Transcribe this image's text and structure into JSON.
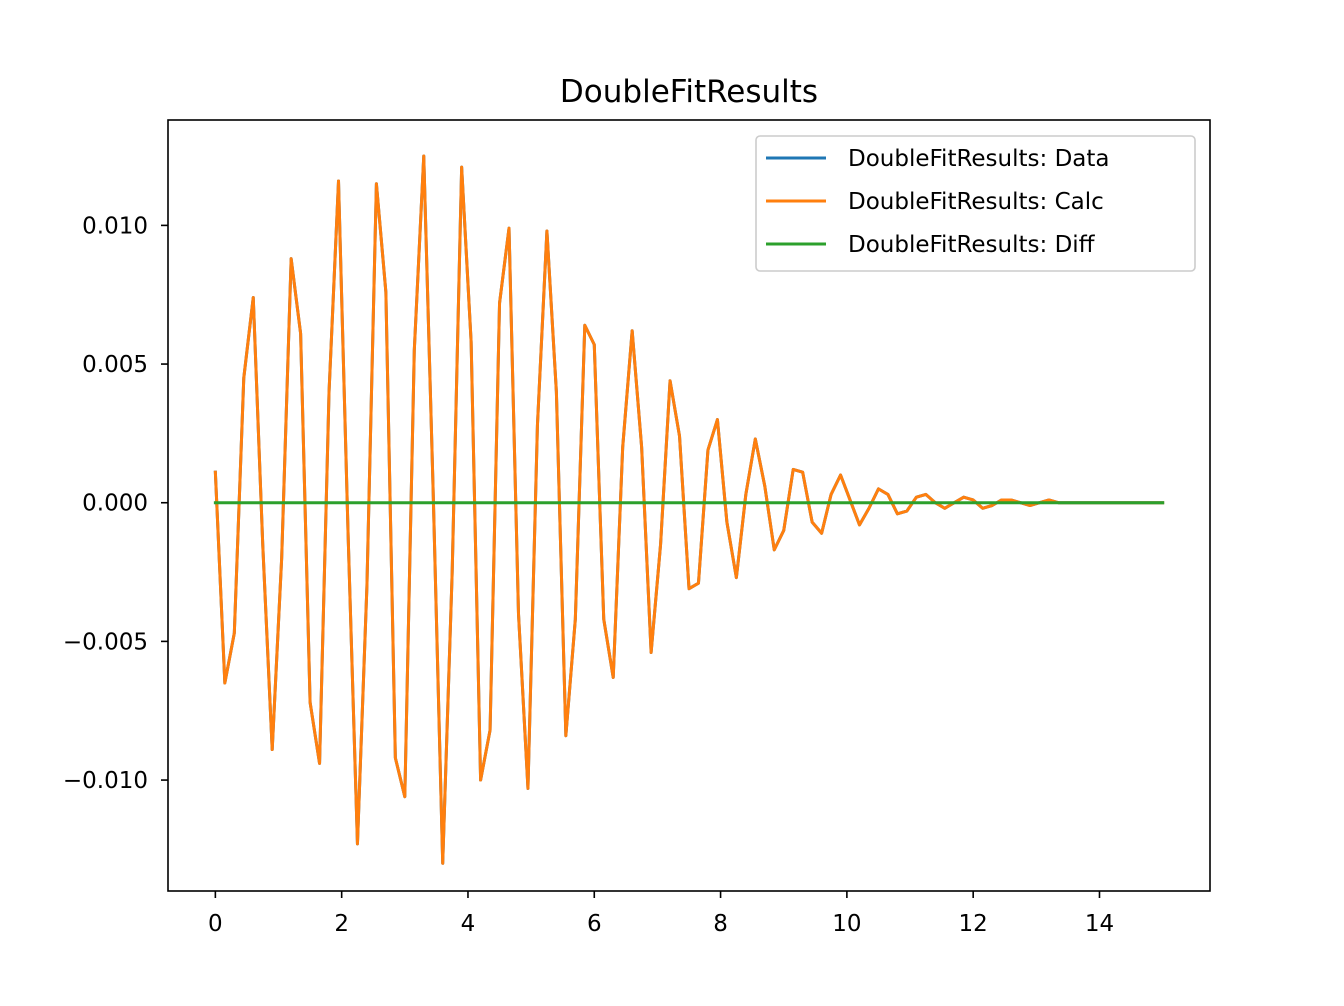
{
  "chart_data": {
    "type": "line",
    "title": "DoubleFitResults",
    "xlabel": "",
    "ylabel": "",
    "xlim": [
      -0.75,
      15.75
    ],
    "ylim": [
      -0.014,
      0.0138
    ],
    "grid": false,
    "legend_position": "top-right",
    "xticks": [
      {
        "value": 0,
        "label": "0"
      },
      {
        "value": 2,
        "label": "2"
      },
      {
        "value": 4,
        "label": "4"
      },
      {
        "value": 6,
        "label": "6"
      },
      {
        "value": 8,
        "label": "8"
      },
      {
        "value": 10,
        "label": "10"
      },
      {
        "value": 12,
        "label": "12"
      },
      {
        "value": 14,
        "label": "14"
      }
    ],
    "yticks": [
      {
        "value": -0.01,
        "label": "−0.010"
      },
      {
        "value": -0.005,
        "label": "−0.005"
      },
      {
        "value": 0,
        "label": "0.000"
      },
      {
        "value": 0.005,
        "label": "0.005"
      },
      {
        "value": 0.01,
        "label": "0.010"
      }
    ],
    "series": [
      {
        "name": "DoubleFitResults: Data",
        "color": "#1f77b4",
        "x": [
          0.0,
          0.15,
          0.3,
          0.45,
          0.6,
          0.75,
          0.9,
          1.05,
          1.2,
          1.35,
          1.5,
          1.65,
          1.8,
          1.95,
          2.1,
          2.25,
          2.4,
          2.55,
          2.7,
          2.85,
          3.0,
          3.15,
          3.3,
          3.45,
          3.6,
          3.75,
          3.9,
          4.05,
          4.2,
          4.35,
          4.5,
          4.65,
          4.8,
          4.95,
          5.1,
          5.25,
          5.4,
          5.55,
          5.7,
          5.85,
          6.0,
          6.15,
          6.3,
          6.45,
          6.6,
          6.75,
          6.9,
          7.05,
          7.2,
          7.35,
          7.5,
          7.65,
          7.8,
          7.95,
          8.1,
          8.25,
          8.4,
          8.55,
          8.7,
          8.85,
          9.0,
          9.15,
          9.3,
          9.45,
          9.6,
          9.75,
          9.9,
          10.05,
          10.2,
          10.35,
          10.5,
          10.65,
          10.8,
          10.95,
          11.1,
          11.25,
          11.4,
          11.55,
          11.7,
          11.85,
          12.0,
          12.15,
          12.3,
          12.45,
          12.6,
          12.75,
          12.9,
          13.05,
          13.2,
          13.35,
          13.5,
          13.65,
          13.8,
          13.95,
          14.1,
          14.25,
          14.4,
          14.55,
          14.7,
          14.85,
          15.0
        ],
        "values": [
          0.0011,
          -0.0065,
          -0.0047,
          0.0045,
          0.0074,
          -0.0015,
          -0.0089,
          -0.002,
          0.0088,
          0.0061,
          -0.0072,
          -0.0094,
          0.004,
          0.0116,
          -0.001,
          -0.0123,
          -0.003,
          0.0115,
          0.0076,
          -0.0092,
          -0.0106,
          0.0055,
          0.0125,
          0.0003,
          -0.013,
          -0.0025,
          0.0121,
          0.0058,
          -0.01,
          -0.0082,
          0.0072,
          0.0099,
          -0.004,
          -0.0103,
          0.0028,
          0.0098,
          0.004,
          -0.0084,
          -0.0042,
          0.0064,
          0.0057,
          -0.0042,
          -0.0063,
          0.002,
          0.0062,
          0.002,
          -0.0054,
          -0.0015,
          0.0044,
          0.0024,
          -0.0031,
          -0.0029,
          0.0019,
          0.003,
          -0.0007,
          -0.0027,
          0.0003,
          0.0023,
          0.0006,
          -0.0017,
          -0.001,
          0.0012,
          0.0011,
          -0.0007,
          -0.0011,
          0.0003,
          0.001,
          0.0001,
          -0.0008,
          -0.0002,
          0.0005,
          0.0003,
          -0.0004,
          -0.0003,
          0.0002,
          0.0003,
          0.0,
          -0.0002,
          0.0,
          0.0002,
          0.0001,
          -0.0002,
          -0.0001,
          0.0001,
          0.0001,
          0.0,
          -0.0001,
          0.0,
          0.0001,
          0.0,
          0.0,
          0.0,
          0.0,
          0.0,
          0.0,
          0.0,
          0.0,
          0.0,
          0.0,
          0.0,
          0.0
        ]
      },
      {
        "name": "DoubleFitResults: Calc",
        "color": "#ff7f0e",
        "x": [
          0.0,
          0.15,
          0.3,
          0.45,
          0.6,
          0.75,
          0.9,
          1.05,
          1.2,
          1.35,
          1.5,
          1.65,
          1.8,
          1.95,
          2.1,
          2.25,
          2.4,
          2.55,
          2.7,
          2.85,
          3.0,
          3.15,
          3.3,
          3.45,
          3.6,
          3.75,
          3.9,
          4.05,
          4.2,
          4.35,
          4.5,
          4.65,
          4.8,
          4.95,
          5.1,
          5.25,
          5.4,
          5.55,
          5.7,
          5.85,
          6.0,
          6.15,
          6.3,
          6.45,
          6.6,
          6.75,
          6.9,
          7.05,
          7.2,
          7.35,
          7.5,
          7.65,
          7.8,
          7.95,
          8.1,
          8.25,
          8.4,
          8.55,
          8.7,
          8.85,
          9.0,
          9.15,
          9.3,
          9.45,
          9.6,
          9.75,
          9.9,
          10.05,
          10.2,
          10.35,
          10.5,
          10.65,
          10.8,
          10.95,
          11.1,
          11.25,
          11.4,
          11.55,
          11.7,
          11.85,
          12.0,
          12.15,
          12.3,
          12.45,
          12.6,
          12.75,
          12.9,
          13.05,
          13.2,
          13.35,
          13.5,
          13.65,
          13.8,
          13.95,
          14.1,
          14.25,
          14.4,
          14.55,
          14.7,
          14.85,
          15.0
        ],
        "values": [
          0.0011,
          -0.0065,
          -0.0047,
          0.0045,
          0.0074,
          -0.0015,
          -0.0089,
          -0.002,
          0.0088,
          0.0061,
          -0.0072,
          -0.0094,
          0.004,
          0.0116,
          -0.001,
          -0.0123,
          -0.003,
          0.0115,
          0.0076,
          -0.0092,
          -0.0106,
          0.0055,
          0.0125,
          0.0003,
          -0.013,
          -0.0025,
          0.0121,
          0.0058,
          -0.01,
          -0.0082,
          0.0072,
          0.0099,
          -0.004,
          -0.0103,
          0.0028,
          0.0098,
          0.004,
          -0.0084,
          -0.0042,
          0.0064,
          0.0057,
          -0.0042,
          -0.0063,
          0.002,
          0.0062,
          0.002,
          -0.0054,
          -0.0015,
          0.0044,
          0.0024,
          -0.0031,
          -0.0029,
          0.0019,
          0.003,
          -0.0007,
          -0.0027,
          0.0003,
          0.0023,
          0.0006,
          -0.0017,
          -0.001,
          0.0012,
          0.0011,
          -0.0007,
          -0.0011,
          0.0003,
          0.001,
          0.0001,
          -0.0008,
          -0.0002,
          0.0005,
          0.0003,
          -0.0004,
          -0.0003,
          0.0002,
          0.0003,
          0.0,
          -0.0002,
          0.0,
          0.0002,
          0.0001,
          -0.0002,
          -0.0001,
          0.0001,
          0.0001,
          0.0,
          -0.0001,
          0.0,
          0.0001,
          0.0,
          0.0,
          0.0,
          0.0,
          0.0,
          0.0,
          0.0,
          0.0,
          0.0,
          0.0,
          0.0,
          0.0
        ]
      },
      {
        "name": "DoubleFitResults: Diff",
        "color": "#2ca02c",
        "x": [
          0.0,
          15.0
        ],
        "values": [
          0.0,
          0.0
        ]
      }
    ]
  }
}
